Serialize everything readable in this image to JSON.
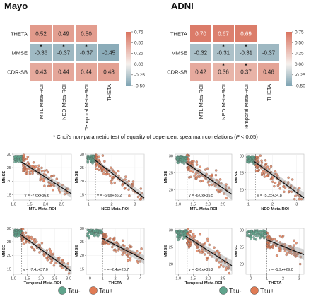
{
  "chart_data": {
    "heatmaps": [
      {
        "type": "heatmap",
        "title": "Mayo",
        "rows": [
          "THETA",
          "MMSE",
          "CDR-SB"
        ],
        "cols": [
          "MTL Meta-ROI",
          "NEO Meta-ROI",
          "Temporal Meta-ROI",
          "THETA"
        ],
        "cells": [
          {
            "row": 0,
            "col": 0,
            "value": 0.52,
            "star": false
          },
          {
            "row": 0,
            "col": 1,
            "value": 0.49,
            "star": false
          },
          {
            "row": 0,
            "col": 2,
            "value": 0.5,
            "star": false
          },
          {
            "row": 1,
            "col": 0,
            "value": -0.36,
            "star": true
          },
          {
            "row": 1,
            "col": 1,
            "value": -0.37,
            "star": true
          },
          {
            "row": 1,
            "col": 2,
            "value": -0.37,
            "star": true
          },
          {
            "row": 1,
            "col": 3,
            "value": -0.45,
            "star": false
          },
          {
            "row": 2,
            "col": 0,
            "value": 0.43,
            "star": false
          },
          {
            "row": 2,
            "col": 1,
            "value": 0.44,
            "star": false
          },
          {
            "row": 2,
            "col": 2,
            "value": 0.44,
            "star": false
          },
          {
            "row": 2,
            "col": 3,
            "value": 0.48,
            "star": false
          }
        ],
        "colorbar": {
          "min": -0.5,
          "max": 0.75,
          "ticks": [
            "0.75",
            "0.50",
            "0.25",
            "0.00",
            "-0.25",
            "-0.50"
          ]
        }
      },
      {
        "type": "heatmap",
        "title": "ADNI",
        "rows": [
          "THETA",
          "MMSE",
          "CDR-SB"
        ],
        "cols": [
          "MTL Meta-ROI",
          "NEO Meta-ROI",
          "Temporal Meta-ROI",
          "THETA"
        ],
        "cells": [
          {
            "row": 0,
            "col": 0,
            "value": 0.7,
            "star": false
          },
          {
            "row": 0,
            "col": 1,
            "value": 0.67,
            "star": false
          },
          {
            "row": 0,
            "col": 2,
            "value": 0.69,
            "star": false
          },
          {
            "row": 1,
            "col": 0,
            "value": -0.32,
            "star": false
          },
          {
            "row": 1,
            "col": 1,
            "value": -0.31,
            "star": true
          },
          {
            "row": 1,
            "col": 2,
            "value": -0.31,
            "star": true
          },
          {
            "row": 1,
            "col": 3,
            "value": -0.37,
            "star": false
          },
          {
            "row": 2,
            "col": 0,
            "value": 0.42,
            "star": false
          },
          {
            "row": 2,
            "col": 1,
            "value": 0.36,
            "star": true
          },
          {
            "row": 2,
            "col": 2,
            "value": 0.37,
            "star": true
          },
          {
            "row": 2,
            "col": 3,
            "value": 0.46,
            "star": false
          }
        ],
        "colorbar": {
          "min": -0.5,
          "max": 0.75,
          "ticks": [
            "0.75",
            "0.50",
            "0.25",
            "0.00",
            "-0.25",
            "-0.50"
          ]
        }
      }
    ],
    "footnote_main": "* Choi's non-parametric test of equality of dependent spearman correlations (",
    "footnote_italic": "P",
    "footnote_end": " < 0.05)",
    "scatters": [
      {
        "type": "scatter",
        "cohort": "Mayo",
        "xlabel": "MTL Meta-ROI",
        "ylabel": "MMSE",
        "xticks": [
          "1.0",
          "1.5",
          "2.0",
          "2.5"
        ],
        "yticks": [
          "30",
          "25",
          "20",
          "15"
        ],
        "xlim": [
          1.0,
          2.8
        ],
        "ylim": [
          13,
          30
        ],
        "cutoff": 1.3,
        "slope": -7.6,
        "intercept": 36.6,
        "equation": "y = -7.6x+36.6"
      },
      {
        "type": "scatter",
        "cohort": "Mayo",
        "xlabel": "NEO Meta-ROI",
        "ylabel": "MMSE",
        "xticks": [
          "1",
          "2",
          "3"
        ],
        "yticks": [
          "30",
          "25",
          "20",
          "15"
        ],
        "xlim": [
          0.9,
          3.4
        ],
        "ylim": [
          13,
          30
        ],
        "cutoff": 1.3,
        "slope": -6.6,
        "intercept": 36.2,
        "equation": "y = -6.6x+36.2"
      },
      {
        "type": "scatter",
        "cohort": "Mayo",
        "xlabel": "Temporal Meta-ROI",
        "ylabel": "MMSE",
        "xticks": [
          "1.0",
          "1.5",
          "2.0",
          "2.5",
          "3.0"
        ],
        "yticks": [
          "30",
          "25",
          "20",
          "15"
        ],
        "xlim": [
          1.0,
          3.1
        ],
        "ylim": [
          13,
          30
        ],
        "cutoff": 1.3,
        "slope": -7.4,
        "intercept": 37.0,
        "equation": "y = -7.4x+37.0"
      },
      {
        "type": "scatter",
        "cohort": "Mayo",
        "xlabel": "THETA",
        "ylabel": "MMSE",
        "xticks": [
          "0",
          "1",
          "2",
          "3",
          "4"
        ],
        "yticks": [
          "30",
          "25",
          "20",
          "15"
        ],
        "xlim": [
          -0.3,
          4.3
        ],
        "ylim": [
          13,
          30
        ],
        "cutoff": 1.0,
        "slope": -2.4,
        "intercept": 28.7,
        "equation": "y = -2.4x+28.7"
      },
      {
        "type": "scatter",
        "cohort": "ADNI",
        "xlabel": "MTL Meta-ROI",
        "ylabel": "MMSE",
        "xticks": [
          "1.0",
          "1.5",
          "2.0",
          "2.5"
        ],
        "yticks": [
          "30",
          "25",
          "20"
        ],
        "xlim": [
          0.9,
          2.8
        ],
        "ylim": [
          17,
          30.5
        ],
        "cutoff": 1.3,
        "slope": -6.0,
        "intercept": 35.5,
        "equation": "y = -6.0x+35.5"
      },
      {
        "type": "scatter",
        "cohort": "ADNI",
        "xlabel": "NEO Meta-ROI",
        "ylabel": "MMSE",
        "xticks": [
          "1",
          "2",
          "3"
        ],
        "yticks": [
          "30",
          "25",
          "20"
        ],
        "xlim": [
          0.9,
          3.3
        ],
        "ylim": [
          17,
          30.5
        ],
        "cutoff": 1.3,
        "slope": -5.2,
        "intercept": 34.8,
        "equation": "y = -5.2x+34.8"
      },
      {
        "type": "scatter",
        "cohort": "ADNI",
        "xlabel": "Temporal Meta-ROI",
        "ylabel": "MMSE",
        "xticks": [
          "1.0",
          "1.5",
          "2.0",
          "2.5"
        ],
        "yticks": [
          "30",
          "25",
          "20"
        ],
        "xlim": [
          0.9,
          2.8
        ],
        "ylim": [
          17,
          30.5
        ],
        "cutoff": 1.3,
        "slope": -5.6,
        "intercept": 35.2,
        "equation": "y = -5.6x+35.2"
      },
      {
        "type": "scatter",
        "cohort": "ADNI",
        "xlabel": "THETA",
        "ylabel": "MMSE",
        "xticks": [
          "0",
          "1",
          "2",
          "3"
        ],
        "yticks": [
          "30",
          "25",
          "20"
        ],
        "xlim": [
          -0.3,
          3.3
        ],
        "ylim": [
          17,
          30.5
        ],
        "cutoff": 1.0,
        "slope": -1.9,
        "intercept": 29.0,
        "equation": "y = -1.9x+29.0"
      }
    ],
    "legend": [
      {
        "label": "Tau-",
        "color": "#5fa48c"
      },
      {
        "label": "Tau+",
        "color": "#e07b54"
      }
    ]
  },
  "colors": {
    "neg": "#7fa4b3",
    "zero": "#f6f1ee",
    "pos": "#d9735f",
    "tauneg": "#5fa48c",
    "taupos": "#e07b54"
  }
}
